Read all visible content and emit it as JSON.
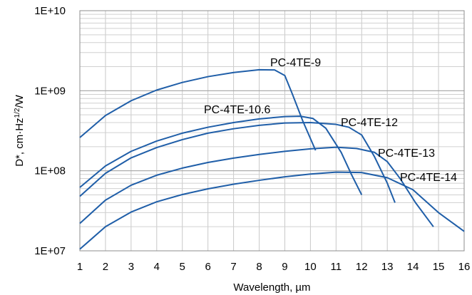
{
  "chart_data": {
    "type": "line",
    "xlabel": "Wavelength, µm",
    "ylabel": {
      "prefix": "D*, cm·Hz",
      "superscript": "1/2",
      "suffix": "/W"
    },
    "xlim": [
      1,
      16
    ],
    "ylim": [
      10000000.0,
      10000000000.0
    ],
    "yscale": "log",
    "grid": true,
    "x_ticks": [
      "1",
      "2",
      "3",
      "4",
      "5",
      "6",
      "7",
      "8",
      "9",
      "10",
      "11",
      "12",
      "13",
      "14",
      "15",
      "16"
    ],
    "y_ticks": [
      {
        "value": 10000000.0,
        "label": "1E+07"
      },
      {
        "value": 100000000.0,
        "label": "1E+08"
      },
      {
        "value": 1000000000.0,
        "label": "1E+09"
      },
      {
        "value": 10000000000.0,
        "label": "1E+10"
      }
    ],
    "line_color": "#1f5ea8",
    "series": [
      {
        "name": "PC-4TE-9",
        "points": [
          [
            1,
            260000000.0
          ],
          [
            2,
            490000000.0
          ],
          [
            3,
            750000000.0
          ],
          [
            4,
            1020000000.0
          ],
          [
            5,
            1270000000.0
          ],
          [
            6,
            1500000000.0
          ],
          [
            7,
            1690000000.0
          ],
          [
            8,
            1830000000.0
          ],
          [
            8.6,
            1820000000.0
          ],
          [
            9,
            1550000000.0
          ],
          [
            9.3,
            900000000.0
          ],
          [
            9.7,
            420000000.0
          ],
          [
            10.2,
            180000000.0
          ]
        ]
      },
      {
        "name": "PC-4TE-10.6",
        "points": [
          [
            1,
            62000000.0
          ],
          [
            2,
            115000000.0
          ],
          [
            3,
            175000000.0
          ],
          [
            4,
            235000000.0
          ],
          [
            5,
            295000000.0
          ],
          [
            6,
            350000000.0
          ],
          [
            7,
            400000000.0
          ],
          [
            8,
            445000000.0
          ],
          [
            9,
            475000000.0
          ],
          [
            9.6,
            480000000.0
          ],
          [
            10.1,
            450000000.0
          ],
          [
            10.6,
            340000000.0
          ],
          [
            11.2,
            170000000.0
          ],
          [
            11.6,
            90000000.0
          ],
          [
            12,
            50000000.0
          ]
        ]
      },
      {
        "name": "PC-4TE-12",
        "points": [
          [
            1,
            48000000.0
          ],
          [
            2,
            93000000.0
          ],
          [
            3,
            145000000.0
          ],
          [
            4,
            195000000.0
          ],
          [
            5,
            245000000.0
          ],
          [
            6,
            295000000.0
          ],
          [
            7,
            335000000.0
          ],
          [
            8,
            370000000.0
          ],
          [
            9,
            395000000.0
          ],
          [
            10,
            400000000.0
          ],
          [
            11,
            380000000.0
          ],
          [
            11.5,
            350000000.0
          ],
          [
            12,
            280000000.0
          ],
          [
            12.5,
            150000000.0
          ],
          [
            13,
            70000000.0
          ],
          [
            13.3,
            40000000.0
          ]
        ]
      },
      {
        "name": "PC-4TE-13",
        "points": [
          [
            1,
            22000000.0
          ],
          [
            2,
            43000000.0
          ],
          [
            3,
            66000000.0
          ],
          [
            4,
            88000000.0
          ],
          [
            5,
            108000000.0
          ],
          [
            6,
            127000000.0
          ],
          [
            7,
            144000000.0
          ],
          [
            8,
            160000000.0
          ],
          [
            9,
            175000000.0
          ],
          [
            10,
            188000000.0
          ],
          [
            11,
            197000000.0
          ],
          [
            11.8,
            190000000.0
          ],
          [
            12.5,
            170000000.0
          ],
          [
            13,
            130000000.0
          ],
          [
            13.5,
            80000000.0
          ],
          [
            14.1,
            40000000.0
          ],
          [
            14.8,
            20000000.0
          ]
        ]
      },
      {
        "name": "PC-4TE-14",
        "points": [
          [
            1,
            10500000.0
          ],
          [
            2,
            20000000.0
          ],
          [
            3,
            30500000.0
          ],
          [
            4,
            41000000.0
          ],
          [
            5,
            50500000.0
          ],
          [
            6,
            59500000.0
          ],
          [
            7,
            68000000.0
          ],
          [
            8,
            76000000.0
          ],
          [
            9,
            84000000.0
          ],
          [
            10,
            91000000.0
          ],
          [
            11,
            96000000.0
          ],
          [
            12,
            95000000.0
          ],
          [
            13,
            82000000.0
          ],
          [
            14,
            58000000.0
          ],
          [
            15,
            30000000.0
          ],
          [
            16,
            17500000.0
          ]
        ]
      }
    ]
  }
}
